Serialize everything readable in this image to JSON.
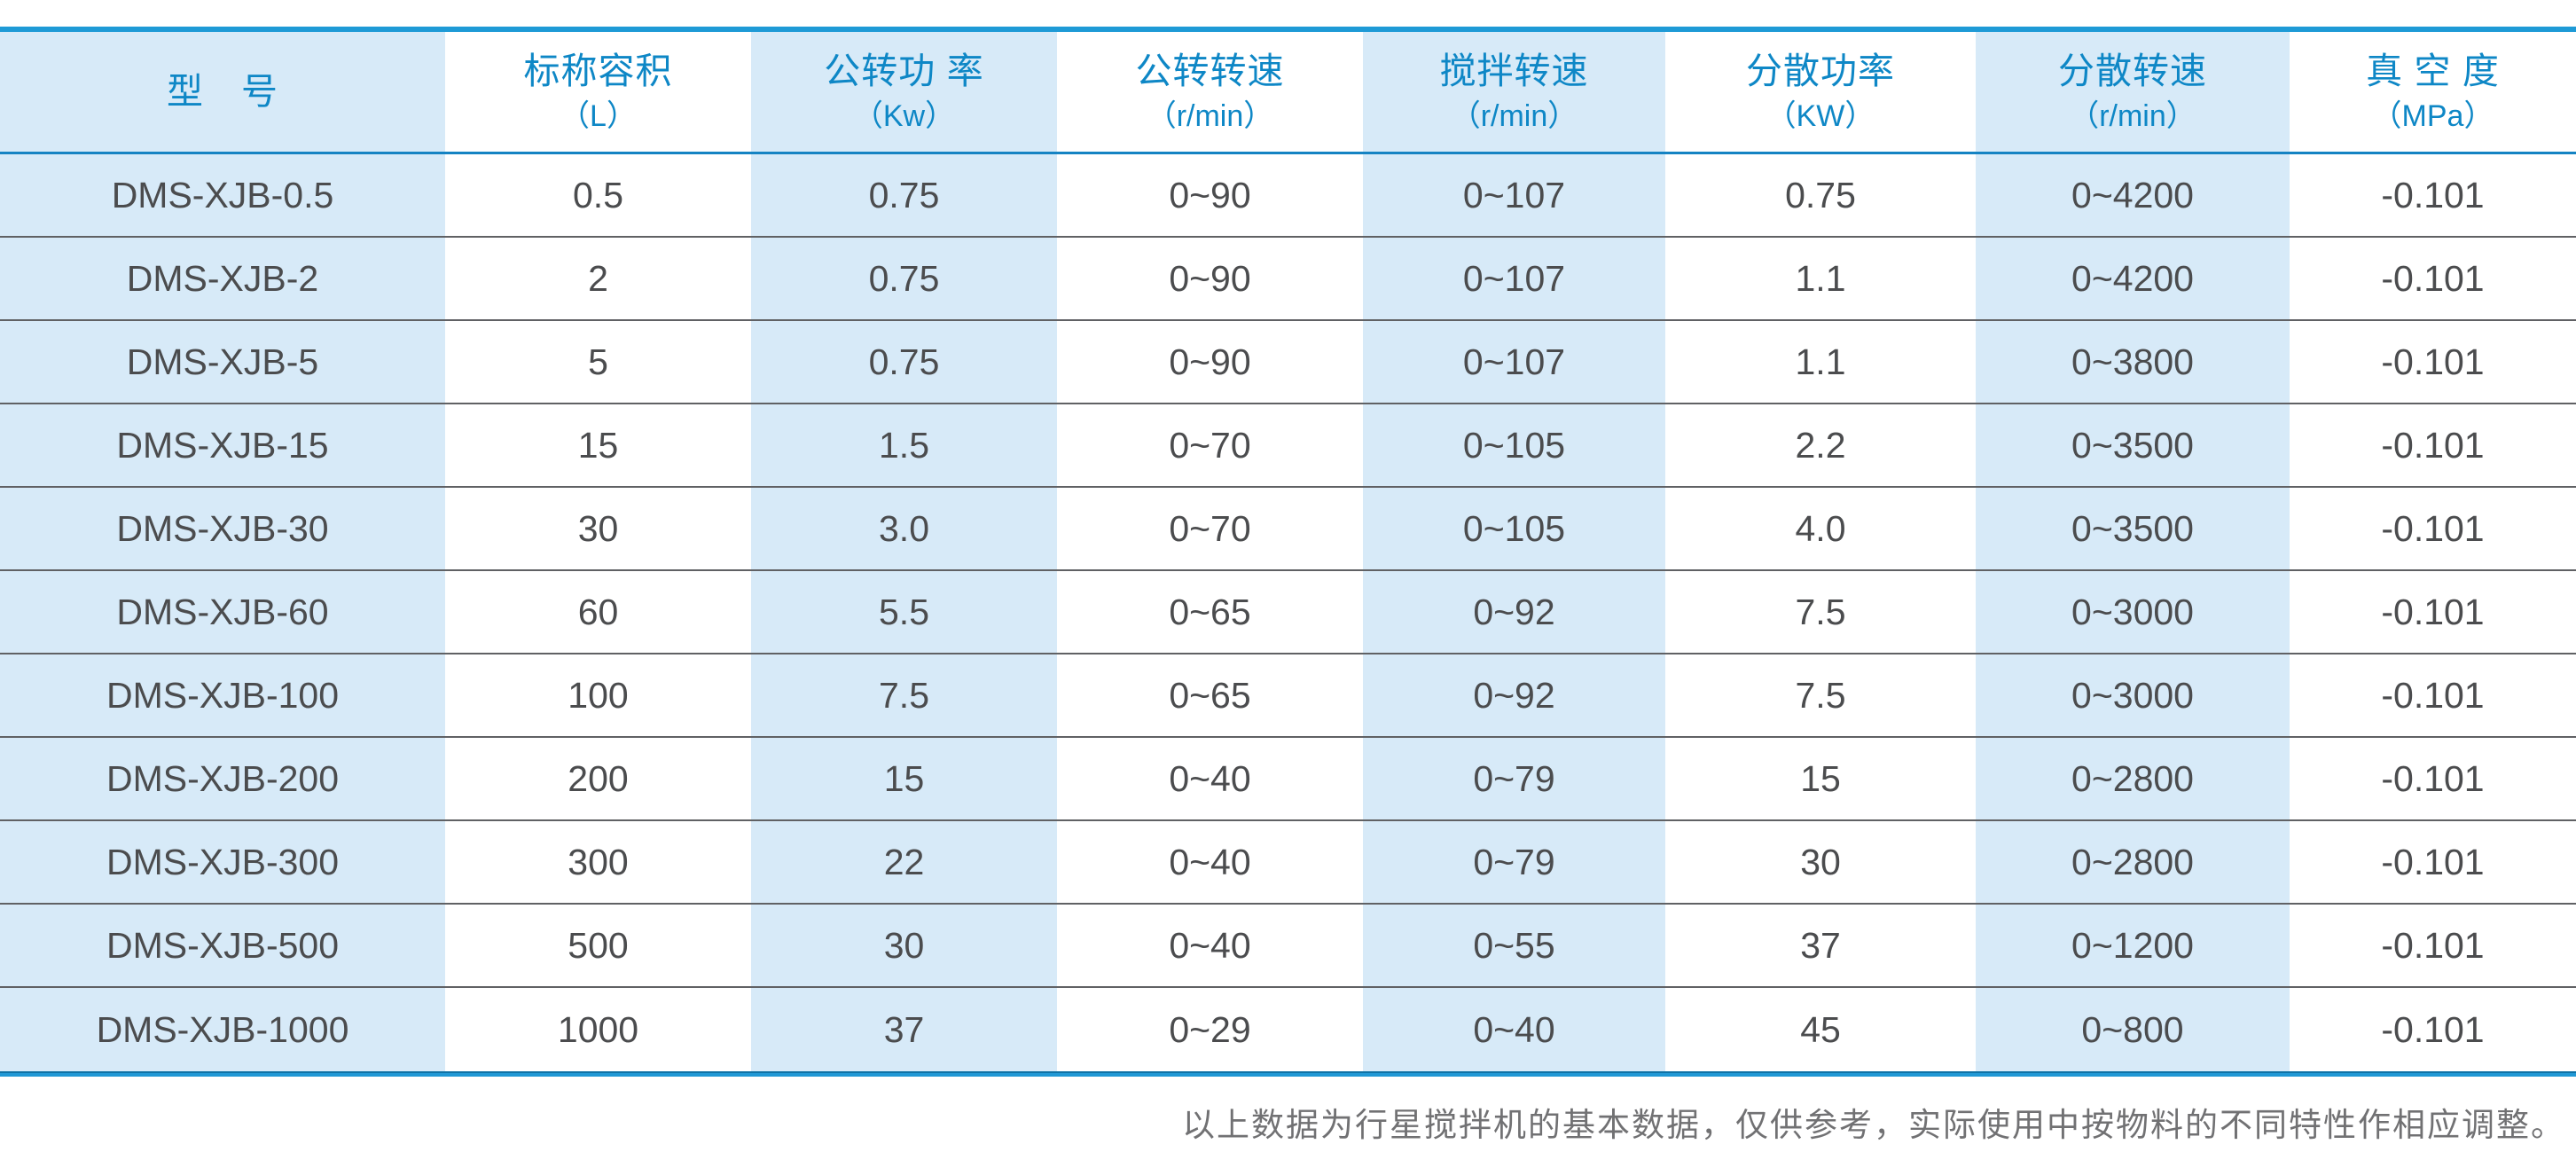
{
  "table": {
    "columns": [
      {
        "label": "型　号",
        "unit": ""
      },
      {
        "label": "标称容积",
        "unit": "（L）"
      },
      {
        "label": "公转功 率",
        "unit": "（Kw）"
      },
      {
        "label": "公转转速",
        "unit": "（r/min）"
      },
      {
        "label": "搅拌转速",
        "unit": "（r/min）"
      },
      {
        "label": "分散功率",
        "unit": "（KW）"
      },
      {
        "label": "分散转速",
        "unit": "（r/min）"
      },
      {
        "label": "真 空 度",
        "unit": "（MPa）"
      }
    ],
    "rows": [
      [
        "DMS-XJB-0.5",
        "0.5",
        "0.75",
        "0~90",
        "0~107",
        "0.75",
        "0~4200",
        "-0.101"
      ],
      [
        "DMS-XJB-2",
        "2",
        "0.75",
        "0~90",
        "0~107",
        "1.1",
        "0~4200",
        "-0.101"
      ],
      [
        "DMS-XJB-5",
        "5",
        "0.75",
        "0~90",
        "0~107",
        "1.1",
        "0~3800",
        "-0.101"
      ],
      [
        "DMS-XJB-15",
        "15",
        "1.5",
        "0~70",
        "0~105",
        "2.2",
        "0~3500",
        "-0.101"
      ],
      [
        "DMS-XJB-30",
        "30",
        "3.0",
        "0~70",
        "0~105",
        "4.0",
        "0~3500",
        "-0.101"
      ],
      [
        "DMS-XJB-60",
        "60",
        "5.5",
        "0~65",
        "0~92",
        "7.5",
        "0~3000",
        "-0.101"
      ],
      [
        "DMS-XJB-100",
        "100",
        "7.5",
        "0~65",
        "0~92",
        "7.5",
        "0~3000",
        "-0.101"
      ],
      [
        "DMS-XJB-200",
        "200",
        "15",
        "0~40",
        "0~79",
        "15",
        "0~2800",
        "-0.101"
      ],
      [
        "DMS-XJB-300",
        "300",
        "22",
        "0~40",
        "0~79",
        "30",
        "0~2800",
        "-0.101"
      ],
      [
        "DMS-XJB-500",
        "500",
        "30",
        "0~40",
        "0~55",
        "37",
        "0~1200",
        "-0.101"
      ],
      [
        "DMS-XJB-1000",
        "1000",
        "37",
        "0~29",
        "0~40",
        "45",
        "0~800",
        "-0.101"
      ]
    ]
  },
  "footnote": "以上数据为行星搅拌机的基本数据，仅供参考，实际使用中按物料的不同特性作相应调整。",
  "colors": {
    "accent_blue": "#1e9ad6",
    "header_text_blue": "#0e87c6",
    "shaded_cell_blue": "#d7eaf8",
    "body_text_gray": "#4b4c4e",
    "row_separator_gray": "#606164",
    "footnote_gray": "#717173"
  },
  "chart_data": {
    "type": "table",
    "title": "行星搅拌机技术参数表",
    "categories": [
      "型　号",
      "标称容积（L）",
      "公转功 率（Kw）",
      "公转转速（r/min）",
      "搅拌转速（r/min）",
      "分散功率（KW）",
      "分散转速（r/min）",
      "真 空 度（MPa）"
    ],
    "series": [
      {
        "name": "标称容积(L)",
        "values": [
          0.5,
          2,
          5,
          15,
          30,
          60,
          100,
          200,
          300,
          500,
          1000
        ]
      },
      {
        "name": "公转功率(Kw)",
        "values": [
          0.75,
          0.75,
          0.75,
          1.5,
          3.0,
          5.5,
          7.5,
          15,
          22,
          30,
          37
        ]
      },
      {
        "name": "分散功率(KW)",
        "values": [
          0.75,
          1.1,
          1.1,
          2.2,
          4.0,
          7.5,
          7.5,
          15,
          30,
          37,
          45
        ]
      },
      {
        "name": "真空度(MPa)",
        "values": [
          -0.101,
          -0.101,
          -0.101,
          -0.101,
          -0.101,
          -0.101,
          -0.101,
          -0.101,
          -0.101,
          -0.101,
          -0.101
        ]
      }
    ]
  }
}
